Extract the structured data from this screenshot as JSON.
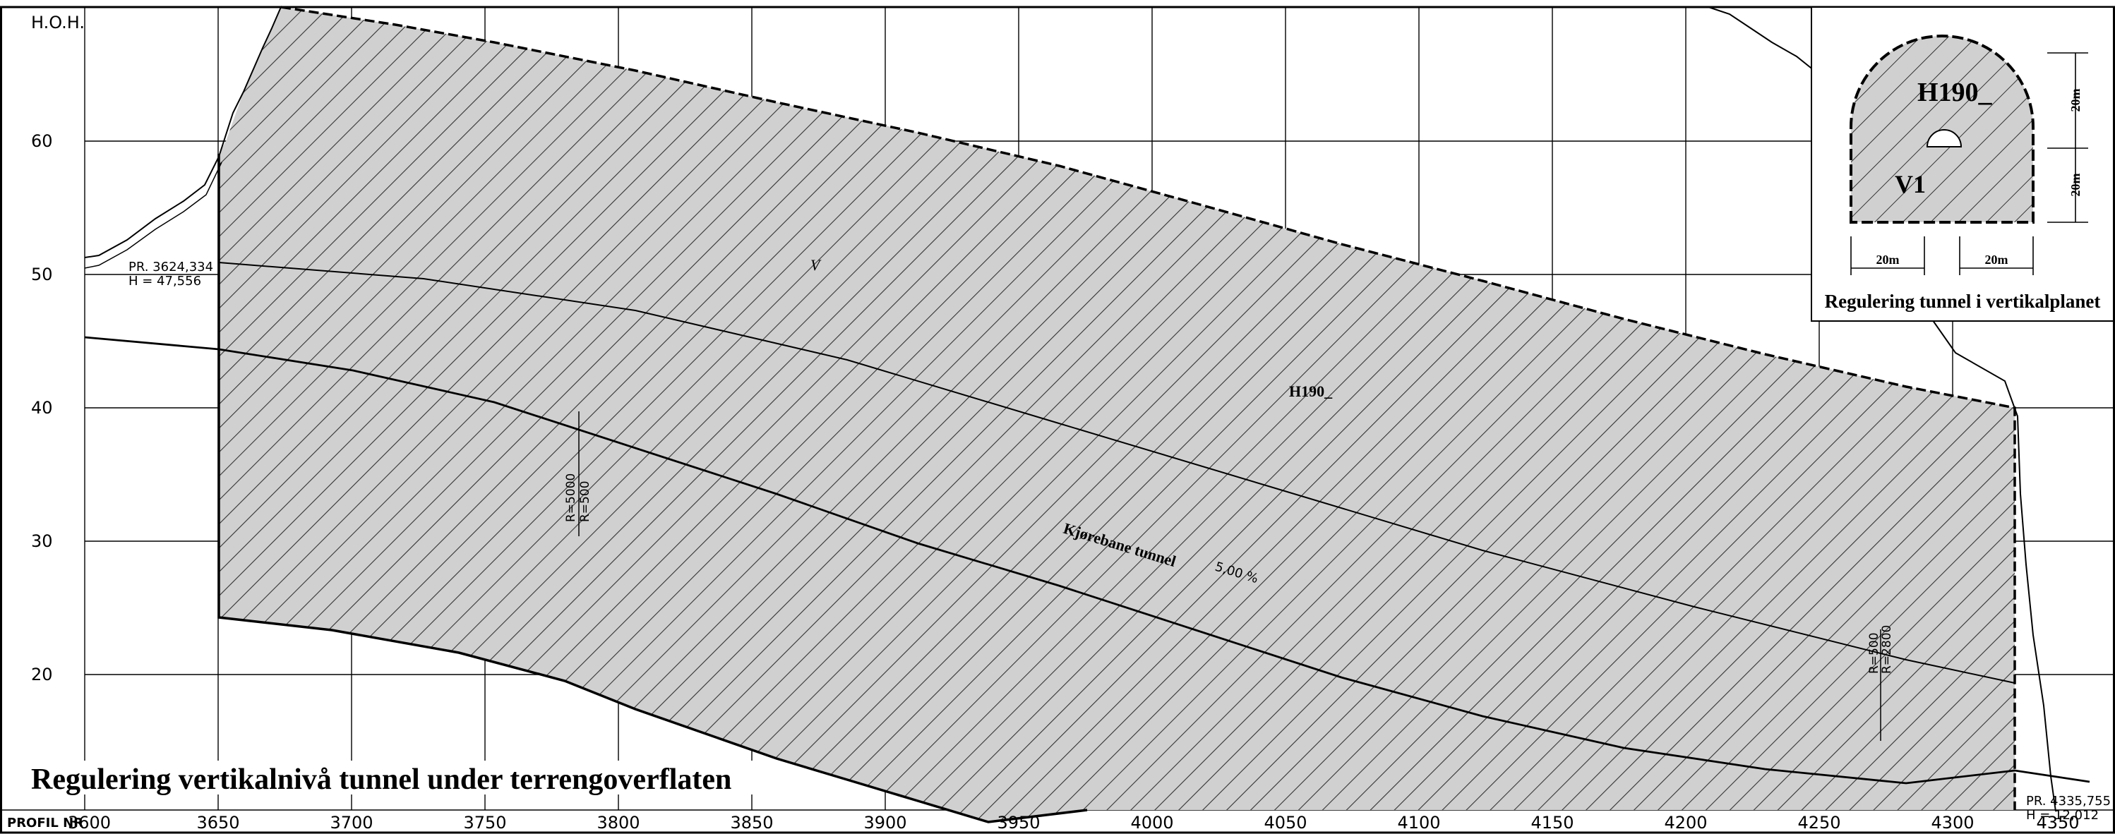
{
  "axes": {
    "y_title": "H.O.H.",
    "y_ticks": [
      "60",
      "50",
      "40",
      "30",
      "20"
    ],
    "x_title": "PROFIL NR",
    "x_ticks": [
      "3600",
      "3650",
      "3700",
      "3750",
      "3800",
      "3850",
      "3900",
      "3950",
      "4000",
      "4050",
      "4100",
      "4150",
      "4200",
      "4250",
      "4300",
      "4350"
    ]
  },
  "annotations": {
    "start_station": "PR. 3624,334",
    "start_height": "H = 47,556",
    "end_station": "PR. 4335,755",
    "end_height": "H = 12,012",
    "tunnel_label": "Kjørebane tunnel",
    "slope_label": "5,00 %",
    "zone_label": "H190_",
    "v_label": "V",
    "radius_left": "R=5000",
    "radius_left_2": "R=500",
    "radius_right": "R=2800",
    "radius_right_2": "R=500"
  },
  "inset": {
    "zone_label": "H190_",
    "v_label": "V1",
    "dim_top": "20m",
    "dim_right": "20m",
    "dim_bottom_left": "20m",
    "dim_bottom_right": "20m",
    "caption": "Regulering tunnel i vertikalplanet"
  },
  "title": "Regulering vertikalnivå tunnel under terrengoverflaten",
  "colors": {
    "hatch_fill": "#d0d0d0",
    "line": "#000000",
    "grid": "#000000"
  }
}
